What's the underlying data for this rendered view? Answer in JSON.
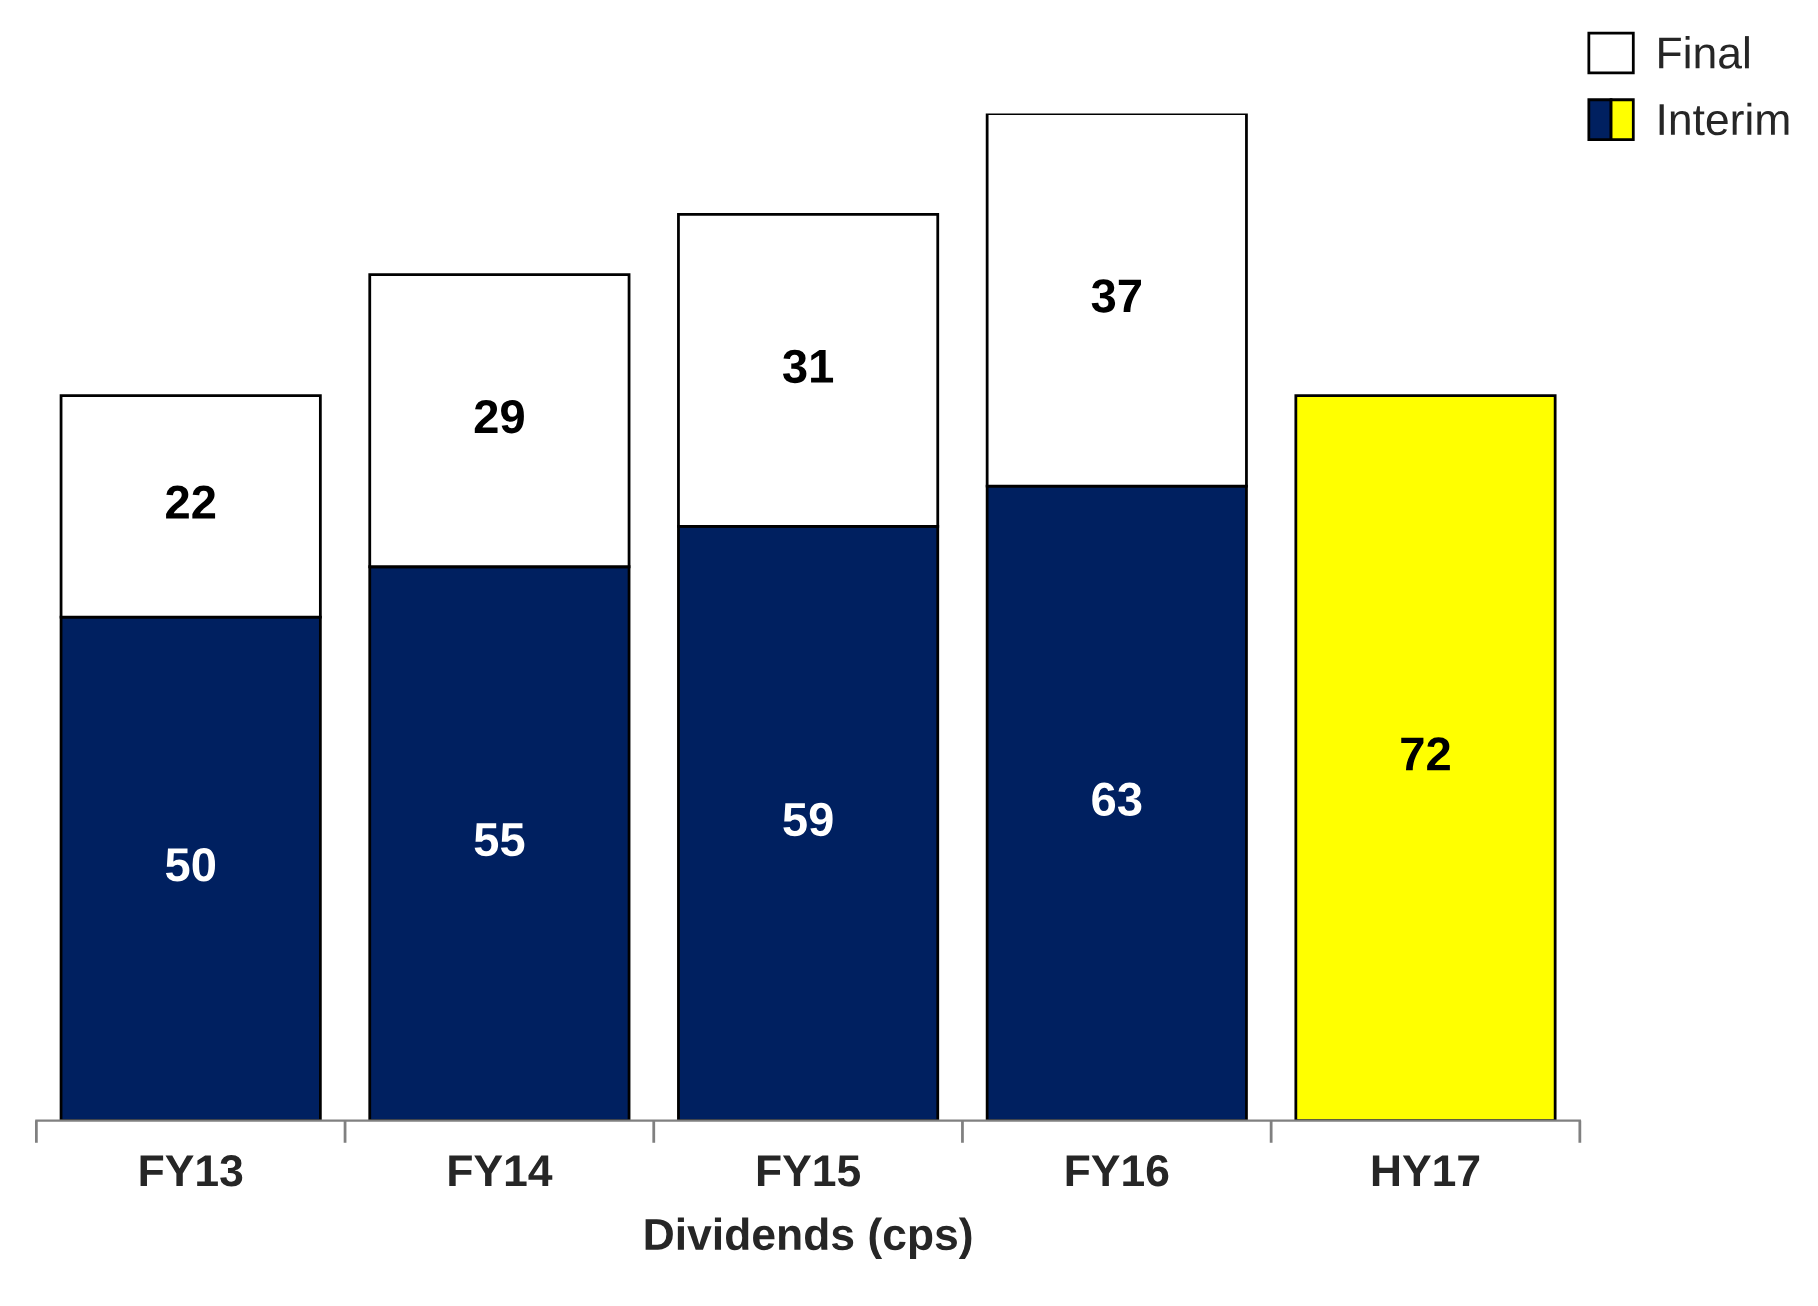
{
  "chart_data": {
    "type": "bar",
    "stacked": true,
    "xlabel": "Dividends (cps)",
    "categories": [
      "FY13",
      "FY14",
      "FY15",
      "FY16",
      "HY17"
    ],
    "series": [
      {
        "name": "Interim",
        "colors": [
          "#002060",
          "#002060",
          "#002060",
          "#002060",
          "#ffff00"
        ],
        "values": [
          50,
          55,
          59,
          63,
          72
        ]
      },
      {
        "name": "Final",
        "color": "#ffffff",
        "values": [
          22,
          29,
          31,
          37,
          null
        ]
      }
    ],
    "data_labels": true,
    "legend": "top right",
    "grid": false
  }
}
